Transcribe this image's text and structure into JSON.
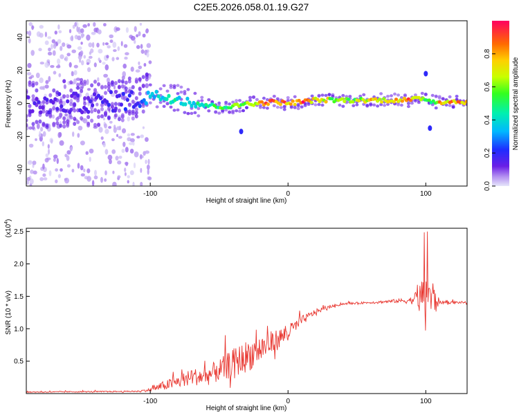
{
  "title": "C2E5.2026.058.01.19.G27",
  "chart_data": [
    {
      "type": "heatmap",
      "name": "spectrogram",
      "xlabel": "Height of straight line (km)",
      "ylabel": "Frequency (Hz)",
      "xlim": [
        -190,
        130
      ],
      "ylim": [
        -50,
        50
      ],
      "xticks": [
        -100,
        0,
        100
      ],
      "xtick_labels": [
        "-100",
        "0",
        "100"
      ],
      "yticks": [
        -40,
        -20,
        0,
        20,
        40
      ],
      "ytick_labels": [
        "-40",
        "-20",
        "0",
        "20",
        "40"
      ],
      "ridge": {
        "x": [
          -190,
          -160,
          -130,
          -110,
          -100,
          -90,
          -80,
          -70,
          -60,
          -50,
          -40,
          -30,
          -20,
          -10,
          0,
          10,
          20,
          40,
          60,
          80,
          90,
          95,
          100,
          105,
          110,
          130
        ],
        "freq": [
          -1,
          0,
          1,
          2,
          5,
          4,
          3,
          1,
          -1,
          -2,
          -2,
          0,
          0,
          1,
          0,
          1,
          2,
          2,
          2,
          2,
          2,
          3,
          3,
          1,
          1,
          1
        ],
        "amplitude": [
          0.15,
          0.15,
          0.18,
          0.22,
          0.35,
          0.45,
          0.45,
          0.45,
          0.5,
          0.55,
          0.6,
          0.7,
          0.85,
          0.95,
          0.9,
          0.95,
          0.8,
          0.6,
          0.75,
          0.85,
          0.9,
          0.8,
          0.6,
          0.55,
          0.8,
          0.9
        ]
      },
      "scatter_region": {
        "x": [
          -190,
          -100
        ],
        "freq_range": [
          -50,
          48
        ]
      },
      "isolated_blobs": [
        {
          "x": -34,
          "freq": -17
        },
        {
          "x": 103,
          "freq": -15
        },
        {
          "x": 100,
          "freq": 18
        }
      ],
      "colorbar": {
        "label": "Normalized spectral amplitude",
        "range": [
          0.0,
          1.0
        ],
        "ticks": [
          0.0,
          0.2,
          0.4,
          0.6,
          0.8
        ],
        "tick_labels": [
          "0.0",
          "0.2",
          "0.4",
          "0.6",
          "0.8"
        ]
      }
    },
    {
      "type": "line",
      "name": "snr",
      "xlabel": "Height of straight line (km)",
      "ylabel": "SNR (10 * v/v)",
      "exponent_label": "(x10",
      "exponent_sup": "4",
      "exponent_close": ")",
      "xlim": [
        -190,
        130
      ],
      "ylim": [
        0,
        2.55
      ],
      "xticks": [
        -100,
        0,
        100
      ],
      "xtick_labels": [
        "-100",
        "0",
        "100"
      ],
      "yticks": [
        0.5,
        1.0,
        1.5,
        2.0,
        2.5
      ],
      "ytick_labels": [
        "0.5",
        "1.0",
        "1.5",
        "2.0",
        "2.5"
      ],
      "line_color": "#e8352e",
      "envelope": {
        "x": [
          -190,
          -110,
          -100,
          -90,
          -80,
          -70,
          -60,
          -50,
          -40,
          -30,
          -20,
          -10,
          0,
          10,
          20,
          30,
          40,
          60,
          80,
          90,
          95,
          100,
          105,
          110,
          130
        ],
        "base": [
          0.02,
          0.03,
          0.05,
          0.1,
          0.15,
          0.22,
          0.22,
          0.3,
          0.4,
          0.5,
          0.62,
          0.75,
          0.9,
          1.1,
          1.25,
          1.33,
          1.38,
          1.4,
          1.42,
          1.42,
          1.43,
          1.4,
          1.38,
          1.4,
          1.4
        ],
        "noise": [
          0.015,
          0.02,
          0.05,
          0.15,
          0.2,
          0.25,
          0.3,
          0.35,
          0.45,
          0.5,
          0.45,
          0.35,
          0.25,
          0.15,
          0.08,
          0.04,
          0.03,
          0.03,
          0.06,
          0.12,
          0.35,
          0.9,
          0.6,
          0.05,
          0.03
        ]
      },
      "peak": {
        "x": 101,
        "y": 2.5
      }
    }
  ]
}
